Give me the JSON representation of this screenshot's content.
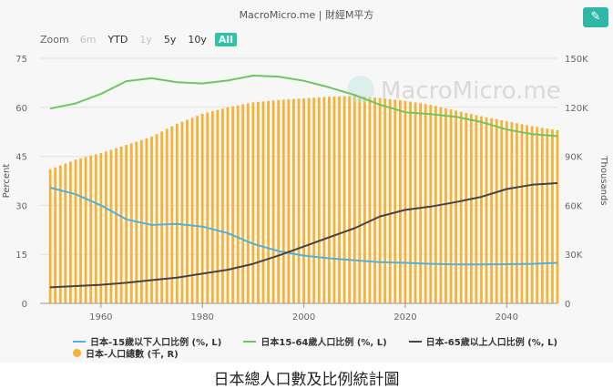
{
  "header": {
    "source_title": "MacroMicro.me | 財經M平方",
    "edit_icon": "pencil-icon"
  },
  "zoom": {
    "label": "Zoom",
    "options": [
      {
        "label": "6m",
        "state": "disabled"
      },
      {
        "label": "YTD",
        "state": "normal"
      },
      {
        "label": "1y",
        "state": "disabled"
      },
      {
        "label": "5y",
        "state": "normal"
      },
      {
        "label": "10y",
        "state": "normal"
      },
      {
        "label": "All",
        "state": "active"
      }
    ]
  },
  "watermark": "MacroMicro.me",
  "caption": "日本總人口數及比例統計圖",
  "chart_data": {
    "type": "line",
    "x_axis": {
      "range": [
        1948,
        2050
      ],
      "ticks": [
        "1960",
        "1980",
        "2000",
        "2020",
        "2040"
      ]
    },
    "left_axis": {
      "label": "Percent",
      "range": [
        0,
        75
      ],
      "ticks": [
        "0",
        "15",
        "30",
        "45",
        "60",
        "75"
      ]
    },
    "right_axis": {
      "label": "Thousands",
      "range": [
        0,
        150000
      ],
      "ticks": [
        "0",
        "30K",
        "60K",
        "90K",
        "120K",
        "150K"
      ]
    },
    "grid": true,
    "legend_position": "bottom",
    "series": [
      {
        "name": "日本-15歲以下人口比例 (%, L)",
        "type": "line",
        "axis": "left",
        "color": "#4fb3d9",
        "points": [
          [
            1950,
            35.4
          ],
          [
            1955,
            33.4
          ],
          [
            1960,
            30.0
          ],
          [
            1965,
            25.7
          ],
          [
            1970,
            24.0
          ],
          [
            1975,
            24.3
          ],
          [
            1980,
            23.5
          ],
          [
            1985,
            21.5
          ],
          [
            1990,
            18.2
          ],
          [
            1995,
            16.0
          ],
          [
            2000,
            14.6
          ],
          [
            2005,
            13.8
          ],
          [
            2010,
            13.2
          ],
          [
            2015,
            12.6
          ],
          [
            2020,
            12.4
          ],
          [
            2025,
            12.1
          ],
          [
            2030,
            11.9
          ],
          [
            2035,
            11.9
          ],
          [
            2040,
            12.0
          ],
          [
            2045,
            12.1
          ],
          [
            2050,
            12.4
          ]
        ]
      },
      {
        "name": "日本15-64歲人口比例 (%, L)",
        "type": "line",
        "axis": "left",
        "color": "#6cc760",
        "points": [
          [
            1950,
            59.6
          ],
          [
            1955,
            61.2
          ],
          [
            1960,
            64.1
          ],
          [
            1965,
            68.0
          ],
          [
            1970,
            68.9
          ],
          [
            1975,
            67.7
          ],
          [
            1980,
            67.3
          ],
          [
            1985,
            68.2
          ],
          [
            1990,
            69.7
          ],
          [
            1995,
            69.4
          ],
          [
            2000,
            68.1
          ],
          [
            2005,
            66.1
          ],
          [
            2010,
            63.8
          ],
          [
            2015,
            60.8
          ],
          [
            2020,
            58.5
          ],
          [
            2025,
            57.9
          ],
          [
            2030,
            57.1
          ],
          [
            2035,
            55.5
          ],
          [
            2040,
            53.2
          ],
          [
            2045,
            51.8
          ],
          [
            2050,
            51.2
          ]
        ]
      },
      {
        "name": "日本-65歲以上人口比例 (%, L)",
        "type": "line",
        "axis": "left",
        "color": "#434348",
        "points": [
          [
            1950,
            4.9
          ],
          [
            1955,
            5.3
          ],
          [
            1960,
            5.7
          ],
          [
            1965,
            6.3
          ],
          [
            1970,
            7.1
          ],
          [
            1975,
            7.9
          ],
          [
            1980,
            9.1
          ],
          [
            1985,
            10.3
          ],
          [
            1990,
            12.1
          ],
          [
            1995,
            14.6
          ],
          [
            2000,
            17.4
          ],
          [
            2005,
            20.2
          ],
          [
            2010,
            23.0
          ],
          [
            2015,
            26.6
          ],
          [
            2020,
            28.6
          ],
          [
            2025,
            29.6
          ],
          [
            2030,
            31.0
          ],
          [
            2035,
            32.6
          ],
          [
            2040,
            35.0
          ],
          [
            2045,
            36.3
          ],
          [
            2050,
            36.8
          ]
        ]
      },
      {
        "name": "日本-人口總數 (千, R)",
        "type": "bar",
        "axis": "right",
        "color": "#f5b335",
        "points": [
          [
            1950,
            82000
          ],
          [
            1955,
            88000
          ],
          [
            1960,
            92000
          ],
          [
            1965,
            97000
          ],
          [
            1970,
            102000
          ],
          [
            1975,
            110000
          ],
          [
            1980,
            116000
          ],
          [
            1985,
            120000
          ],
          [
            1990,
            123000
          ],
          [
            1995,
            124500
          ],
          [
            2000,
            125500
          ],
          [
            2005,
            126500
          ],
          [
            2010,
            127000
          ],
          [
            2015,
            125700
          ],
          [
            2020,
            124000
          ],
          [
            2025,
            121500
          ],
          [
            2030,
            118000
          ],
          [
            2035,
            114500
          ],
          [
            2040,
            111500
          ],
          [
            2045,
            108500
          ],
          [
            2050,
            106000
          ]
        ]
      }
    ]
  }
}
